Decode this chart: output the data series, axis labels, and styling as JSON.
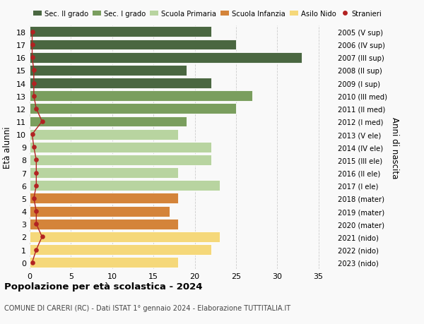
{
  "ages": [
    18,
    17,
    16,
    15,
    14,
    13,
    12,
    11,
    10,
    9,
    8,
    7,
    6,
    5,
    4,
    3,
    2,
    1,
    0
  ],
  "right_labels": [
    "2005 (V sup)",
    "2006 (IV sup)",
    "2007 (III sup)",
    "2008 (II sup)",
    "2009 (I sup)",
    "2010 (III med)",
    "2011 (II med)",
    "2012 (I med)",
    "2013 (V ele)",
    "2014 (IV ele)",
    "2015 (III ele)",
    "2016 (II ele)",
    "2017 (I ele)",
    "2018 (mater)",
    "2019 (mater)",
    "2020 (mater)",
    "2021 (nido)",
    "2022 (nido)",
    "2023 (nido)"
  ],
  "bar_values": [
    22,
    25,
    33,
    19,
    22,
    27,
    25,
    19,
    18,
    22,
    22,
    18,
    23,
    18,
    17,
    18,
    23,
    22,
    18
  ],
  "stranieri_values": [
    0.3,
    0.3,
    0.3,
    0.5,
    0.5,
    0.5,
    0.8,
    1.5,
    0.3,
    0.5,
    0.8,
    0.8,
    0.8,
    0.5,
    0.8,
    0.8,
    1.5,
    0.8,
    0.3
  ],
  "bar_colors": [
    "#4a6741",
    "#4a6741",
    "#4a6741",
    "#4a6741",
    "#4a6741",
    "#7a9e5e",
    "#7a9e5e",
    "#7a9e5e",
    "#b8d4a0",
    "#b8d4a0",
    "#b8d4a0",
    "#b8d4a0",
    "#b8d4a0",
    "#d4843a",
    "#d4843a",
    "#d4843a",
    "#f5d87a",
    "#f5d87a",
    "#f5d87a"
  ],
  "legend_labels": [
    "Sec. II grado",
    "Sec. I grado",
    "Scuola Primaria",
    "Scuola Infanzia",
    "Asilo Nido",
    "Stranieri"
  ],
  "legend_colors": [
    "#4a6741",
    "#7a9e5e",
    "#b8d4a0",
    "#d4843a",
    "#f5d87a",
    "#b22222"
  ],
  "title": "Popolazione per età scolastica - 2024",
  "subtitle": "COMUNE DI CARERI (RC) - Dati ISTAT 1° gennaio 2024 - Elaborazione TUTTITALIA.IT",
  "ylabel_left": "Età alunni",
  "ylabel_right": "Anni di nascita",
  "xlim": [
    0,
    37
  ],
  "xticks": [
    0,
    5,
    10,
    15,
    20,
    25,
    30,
    35
  ],
  "background_color": "#f9f9f9",
  "grid_color": "#cccccc",
  "stranieri_color": "#b22222",
  "bar_height": 0.82
}
